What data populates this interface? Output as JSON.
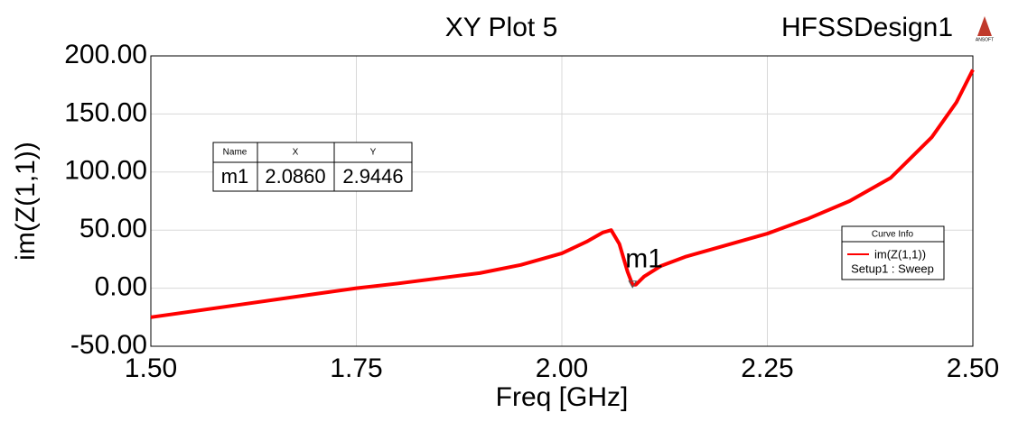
{
  "chart_data": {
    "type": "line",
    "title": "XY Plot 5",
    "design_name": "HFSSDesign1",
    "logo": "ANSOFT",
    "x_label": "Freq [GHz]",
    "y_label": "im(Z(1,1))",
    "x": [
      1.5,
      1.6,
      1.7,
      1.75,
      1.8,
      1.9,
      1.95,
      2.0,
      2.03,
      2.05,
      2.06,
      2.07,
      2.08,
      2.086,
      2.09,
      2.1,
      2.12,
      2.15,
      2.2,
      2.25,
      2.3,
      2.35,
      2.4,
      2.45,
      2.48,
      2.5
    ],
    "series": [
      {
        "name": "im(Z(1,1))",
        "color": "#ff0000",
        "values": [
          -25,
          -15,
          -5,
          0,
          4,
          13,
          20,
          30,
          40,
          48,
          50,
          38,
          14,
          2.9446,
          3,
          10,
          19,
          27,
          37,
          47,
          60,
          75,
          95,
          130,
          160,
          188
        ]
      }
    ],
    "xlim": [
      1.5,
      2.5
    ],
    "ylim": [
      -50,
      200
    ],
    "xticks": [
      {
        "value": 1.5,
        "label": "1.50"
      },
      {
        "value": 1.75,
        "label": "1.75"
      },
      {
        "value": 2.0,
        "label": "2.00"
      },
      {
        "value": 2.25,
        "label": "2.25"
      },
      {
        "value": 2.5,
        "label": "2.50"
      }
    ],
    "yticks": [
      {
        "value": -50,
        "label": "-50.00"
      },
      {
        "value": 0,
        "label": "0.00"
      },
      {
        "value": 50,
        "label": "50.00"
      },
      {
        "value": 100,
        "label": "100.00"
      },
      {
        "value": 150,
        "label": "150.00"
      },
      {
        "value": 200,
        "label": "200.00"
      }
    ],
    "grid": true,
    "legend_title": "Curve Info",
    "legend_subtitle": "Setup1 : Sweep",
    "marker": {
      "name": "m1",
      "x": 2.086,
      "y": 2.9446,
      "x_label": "2.0860",
      "y_label": "2.9446"
    },
    "marker_table": {
      "headers": [
        "Name",
        "X",
        "Y"
      ]
    }
  }
}
